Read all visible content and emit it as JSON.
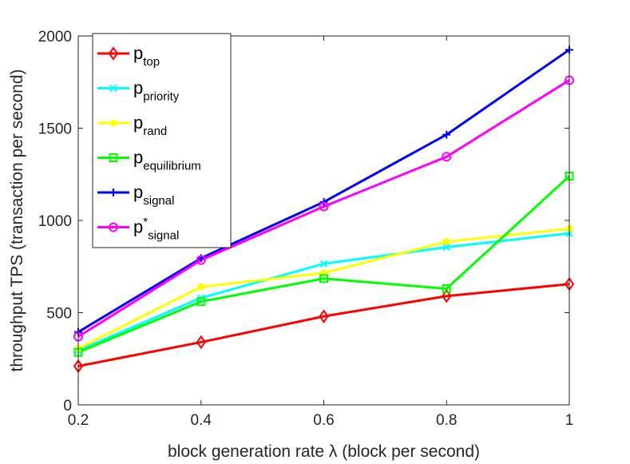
{
  "chart_data": {
    "type": "line",
    "title": "",
    "xlabel": "block generation rate λ (block per second)",
    "ylabel": "throughput TPS (transaction per second)",
    "x": [
      0.2,
      0.4,
      0.6,
      0.8,
      1
    ],
    "xlim": [
      0.2,
      1
    ],
    "ylim": [
      0,
      2000
    ],
    "xticks": [
      "0.2",
      "0.4",
      "0.6",
      "0.8",
      "1"
    ],
    "yticks": [
      "0",
      "500",
      "1000",
      "1500",
      "2000"
    ],
    "grid": false,
    "legend_position": "top-left",
    "series": [
      {
        "name": "p_top",
        "base": "p",
        "sup": "",
        "sub": "top",
        "color": "#ff0000",
        "marker": "diamond",
        "values": [
          210,
          340,
          480,
          590,
          655
        ]
      },
      {
        "name": "p_priority",
        "base": "p",
        "sup": "",
        "sub": "priority",
        "color": "#00ffff",
        "marker": "x",
        "values": [
          295,
          580,
          765,
          855,
          930
        ]
      },
      {
        "name": "p_rand",
        "base": "p",
        "sup": "",
        "sub": "rand",
        "color": "#ffff00",
        "marker": "dot",
        "values": [
          305,
          640,
          715,
          885,
          955
        ]
      },
      {
        "name": "p_equilibrium",
        "base": "p",
        "sup": "",
        "sub": "equilibrium",
        "color": "#00ff00",
        "marker": "square",
        "values": [
          285,
          560,
          685,
          630,
          1240
        ]
      },
      {
        "name": "p_signal",
        "base": "p",
        "sup": "",
        "sub": "signal",
        "color": "#0000ff",
        "marker": "plus",
        "values": [
          395,
          795,
          1100,
          1465,
          1925
        ]
      },
      {
        "name": "p*_signal",
        "base": "p",
        "sup": "*",
        "sub": "signal",
        "color": "#ff00ff",
        "marker": "circle",
        "values": [
          370,
          785,
          1075,
          1345,
          1760
        ]
      }
    ]
  }
}
